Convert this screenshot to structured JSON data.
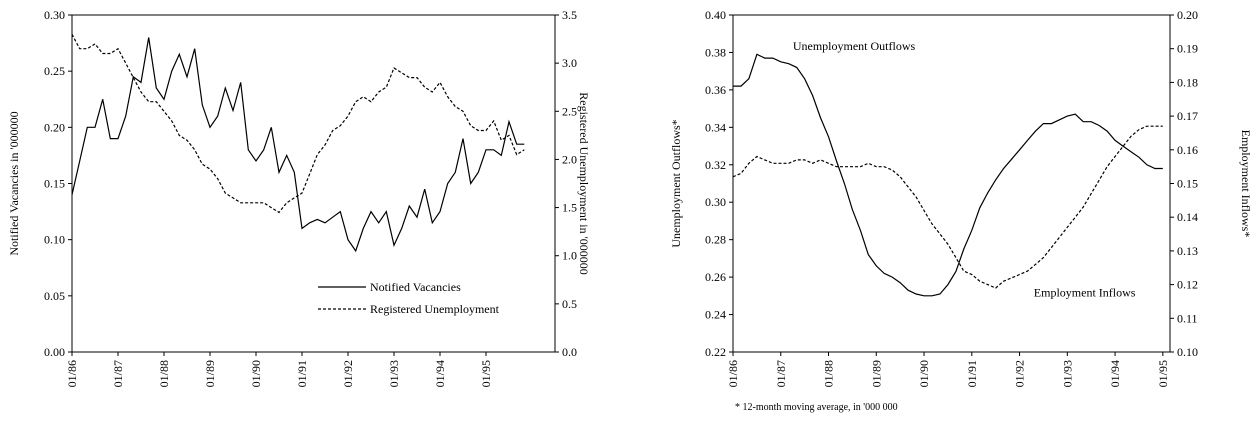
{
  "chart_data": [
    {
      "type": "line",
      "ylabel": "Notified Vacancies in '000000",
      "y2label": "Registered Unemployment in '000000",
      "categories": [
        "01/86",
        null,
        null,
        null,
        null,
        null,
        "01/87",
        null,
        null,
        null,
        null,
        null,
        "01/88",
        null,
        null,
        null,
        null,
        null,
        "01/89",
        null,
        null,
        null,
        null,
        null,
        "01/90",
        null,
        null,
        null,
        null,
        null,
        "01/91",
        null,
        null,
        null,
        null,
        null,
        "01/92",
        null,
        null,
        null,
        null,
        null,
        "01/93",
        null,
        null,
        null,
        null,
        null,
        "01/94",
        null,
        null,
        null,
        null,
        null,
        "01/95",
        null,
        null,
        null,
        null,
        null
      ],
      "series": [
        {
          "name": "Notified Vacancies",
          "color": "#000000",
          "dash": false,
          "values": [
            0.14,
            0.17,
            0.2,
            0.2,
            0.225,
            0.19,
            0.19,
            0.21,
            0.245,
            0.24,
            0.28,
            0.235,
            0.225,
            0.25,
            0.265,
            0.245,
            0.27,
            0.22,
            0.2,
            0.21,
            0.235,
            0.215,
            0.24,
            0.18,
            0.17,
            0.18,
            0.2,
            0.16,
            0.175,
            0.16,
            0.11,
            0.115,
            0.118,
            0.115,
            0.12,
            0.125,
            0.1,
            0.09,
            0.11,
            0.125,
            0.115,
            0.125,
            0.095,
            0.11,
            0.13,
            0.12,
            0.145,
            0.115,
            0.125,
            0.15,
            0.16,
            0.19,
            0.15,
            0.16,
            0.18,
            0.18,
            0.175,
            0.205,
            0.185,
            0.185
          ]
        },
        {
          "name": "Registered Unemployment",
          "color": "#000000",
          "dash": true,
          "axis": "y2",
          "values": [
            3.3,
            3.15,
            3.15,
            3.2,
            3.1,
            3.1,
            3.15,
            3.0,
            2.85,
            2.7,
            2.6,
            2.6,
            2.5,
            2.4,
            2.25,
            2.2,
            2.1,
            1.95,
            1.9,
            1.8,
            1.65,
            1.6,
            1.55,
            1.55,
            1.55,
            1.55,
            1.5,
            1.45,
            1.55,
            1.6,
            1.65,
            1.85,
            2.05,
            2.15,
            2.3,
            2.35,
            2.45,
            2.6,
            2.65,
            2.6,
            2.7,
            2.75,
            2.95,
            2.9,
            2.85,
            2.85,
            2.75,
            2.7,
            2.8,
            2.65,
            2.55,
            2.5,
            2.35,
            2.3,
            2.3,
            2.4,
            2.2,
            2.25,
            2.05,
            2.1
          ]
        }
      ],
      "ylim": [
        0,
        0.3
      ],
      "yticks": [
        {
          "value": 0,
          "label": "0.00"
        },
        {
          "value": 0.05,
          "label": "0.05"
        },
        {
          "value": 0.1,
          "label": "0.10"
        },
        {
          "value": 0.15,
          "label": "0.15"
        },
        {
          "value": 0.2,
          "label": "0.20"
        },
        {
          "value": 0.25,
          "label": "0.25"
        },
        {
          "value": 0.3,
          "label": "0.30"
        }
      ],
      "y2lim": [
        0,
        3.5
      ],
      "y2ticks": [
        {
          "value": 0,
          "label": "0.0"
        },
        {
          "value": 0.5,
          "label": "0.5"
        },
        {
          "value": 1,
          "label": "1.0"
        },
        {
          "value": 1.5,
          "label": "1.5"
        },
        {
          "value": 2,
          "label": "2.0"
        },
        {
          "value": 2.5,
          "label": "2.5"
        },
        {
          "value": 3,
          "label": "3.0"
        },
        {
          "value": 3.5,
          "label": "3.5"
        }
      ],
      "legend": "lower right"
    },
    {
      "type": "line",
      "ylabel": "Unemployment Outflows*",
      "y2label": "Employment Inflows*",
      "note": "* 12-month moving average, in '000 000",
      "categories": [
        "01/86",
        null,
        null,
        null,
        null,
        null,
        "01/87",
        null,
        null,
        null,
        null,
        null,
        "01/88",
        null,
        null,
        null,
        null,
        null,
        "01/89",
        null,
        null,
        null,
        null,
        null,
        "01/90",
        null,
        null,
        null,
        null,
        null,
        "01/91",
        null,
        null,
        null,
        null,
        null,
        "01/92",
        null,
        null,
        null,
        null,
        null,
        "01/93",
        null,
        null,
        null,
        null,
        null,
        "01/94",
        null,
        null,
        null,
        null,
        null,
        "01/95"
      ],
      "series": [
        {
          "name": "Unemployment Outflows",
          "color": "#000000",
          "dash": false,
          "values": [
            0.362,
            0.362,
            0.366,
            0.379,
            0.377,
            0.377,
            0.375,
            0.374,
            0.372,
            0.366,
            0.357,
            0.345,
            0.335,
            0.322,
            0.31,
            0.296,
            0.285,
            0.272,
            0.266,
            0.262,
            0.26,
            0.257,
            0.253,
            0.251,
            0.25,
            0.25,
            0.251,
            0.256,
            0.263,
            0.275,
            0.285,
            0.297,
            0.305,
            0.312,
            0.318,
            0.323,
            0.328,
            0.333,
            0.338,
            0.342,
            0.342,
            0.344,
            0.346,
            0.347,
            0.343,
            0.343,
            0.341,
            0.338,
            0.333,
            0.33,
            0.327,
            0.324,
            0.32,
            0.318,
            0.318
          ]
        },
        {
          "name": "Employment Inflows",
          "color": "#000000",
          "dash": true,
          "axis": "y2",
          "values": [
            0.152,
            0.153,
            0.156,
            0.158,
            0.157,
            0.156,
            0.156,
            0.156,
            0.157,
            0.157,
            0.156,
            0.157,
            0.156,
            0.155,
            0.155,
            0.155,
            0.155,
            0.156,
            0.155,
            0.155,
            0.154,
            0.152,
            0.149,
            0.146,
            0.142,
            0.138,
            0.135,
            0.132,
            0.128,
            0.124,
            0.123,
            0.121,
            0.12,
            0.119,
            0.121,
            0.122,
            0.123,
            0.124,
            0.126,
            0.128,
            0.131,
            0.134,
            0.137,
            0.14,
            0.143,
            0.147,
            0.151,
            0.155,
            0.158,
            0.161,
            0.164,
            0.166,
            0.167,
            0.167,
            0.167
          ]
        }
      ],
      "ylim": [
        0.22,
        0.4
      ],
      "yticks": [
        0.22,
        0.24,
        0.26,
        0.28,
        {
          "value": 0.3,
          "label": "0.30"
        },
        0.32,
        0.34,
        0.36,
        0.38,
        {
          "value": 0.4,
          "label": "0.40"
        }
      ],
      "y2lim": [
        0.1,
        0.2
      ],
      "y2ticks": [
        {
          "value": 0.1,
          "label": "0.10"
        },
        0.11,
        0.12,
        0.13,
        0.14,
        0.15,
        0.16,
        0.17,
        0.18,
        0.19,
        {
          "value": 0.2,
          "label": "0.20"
        }
      ],
      "legend": "none"
    }
  ]
}
